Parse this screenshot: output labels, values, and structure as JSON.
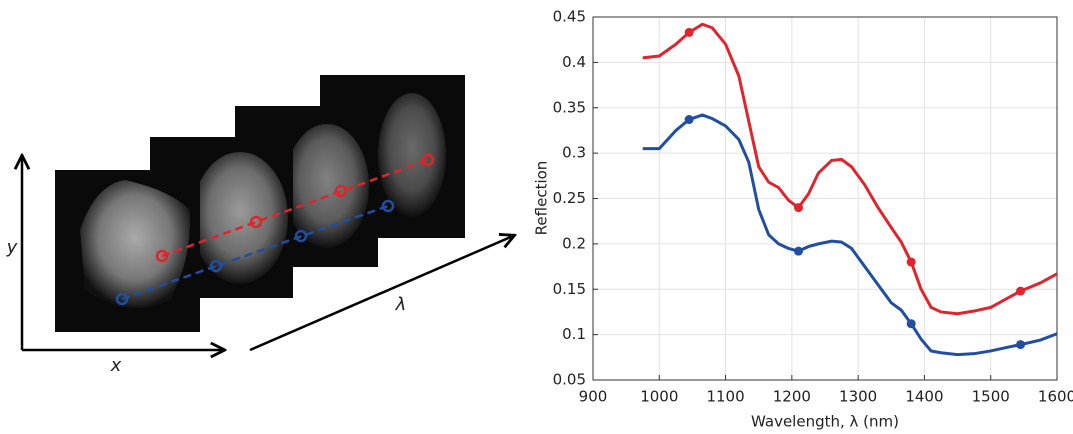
{
  "diagram": {
    "axis_labels": [
      "y",
      "x",
      "λ"
    ]
  },
  "chart_data": {
    "type": "line",
    "x_label": "Wavelength, λ (nm)",
    "y_label": "Reflection",
    "xlim": [
      900,
      1600
    ],
    "xticks": [
      900,
      1000,
      1100,
      1200,
      1300,
      1400,
      1500,
      1600
    ],
    "ylim": [
      0.05,
      0.45
    ],
    "yticks": [
      0.05,
      0.1,
      0.15,
      0.2,
      0.25,
      0.3,
      0.35,
      0.4,
      0.45
    ],
    "grid": true,
    "markers_at_x": [
      1045,
      1210,
      1380,
      1545
    ],
    "x": [
      975,
      1000,
      1025,
      1045,
      1065,
      1080,
      1100,
      1120,
      1135,
      1150,
      1165,
      1180,
      1195,
      1210,
      1225,
      1240,
      1260,
      1275,
      1290,
      1310,
      1330,
      1350,
      1365,
      1380,
      1395,
      1410,
      1425,
      1450,
      1475,
      1500,
      1525,
      1545,
      1575,
      1600
    ],
    "series": [
      {
        "color": "#e0242b",
        "values": [
          0.405,
          0.407,
          0.42,
          0.433,
          0.442,
          0.438,
          0.42,
          0.385,
          0.335,
          0.285,
          0.268,
          0.262,
          0.248,
          0.24,
          0.255,
          0.278,
          0.292,
          0.293,
          0.285,
          0.265,
          0.24,
          0.218,
          0.202,
          0.18,
          0.15,
          0.13,
          0.125,
          0.123,
          0.126,
          0.13,
          0.14,
          0.148,
          0.157,
          0.167
        ]
      },
      {
        "color": "#1f4ea3",
        "values": [
          0.305,
          0.305,
          0.325,
          0.337,
          0.342,
          0.338,
          0.33,
          0.315,
          0.29,
          0.238,
          0.21,
          0.2,
          0.195,
          0.192,
          0.197,
          0.2,
          0.203,
          0.202,
          0.195,
          0.175,
          0.155,
          0.135,
          0.127,
          0.112,
          0.095,
          0.082,
          0.08,
          0.078,
          0.079,
          0.082,
          0.086,
          0.089,
          0.094,
          0.101
        ]
      }
    ]
  }
}
